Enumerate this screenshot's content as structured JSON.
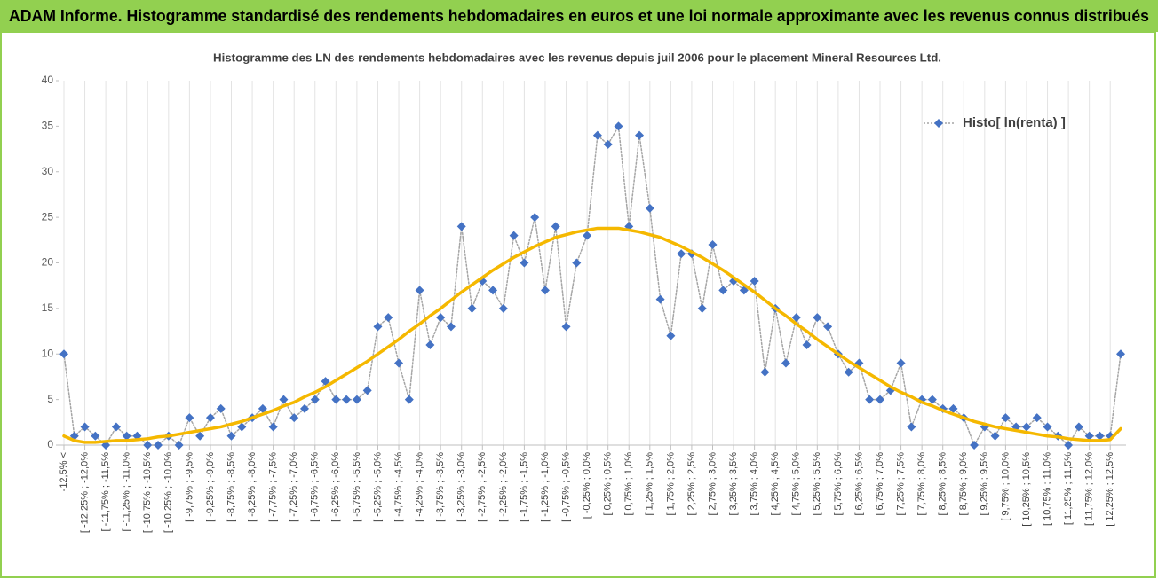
{
  "header": {
    "title": "ADAM Informe. Histogramme standardisé des rendements hebdomadaires en euros et une loi normale approximante avec les revenus connus distribués"
  },
  "chart_data": {
    "type": "line",
    "title": "Histogramme des LN des rendements hebdomadaires avec les revenus depuis juil 2006 pour le placement Mineral Resources Ltd.",
    "categories": [
      "-12,5% <",
      null,
      "[ -12,25% ; -12,0%",
      null,
      "[ -11,75% ; -11,5%",
      null,
      "[ -11,25% ; -11,0%",
      null,
      "[ -10,75% ; -10,5%",
      null,
      "[ -10,25% ; -10,0%",
      null,
      "[ -9,75% ; -9,5%",
      null,
      "[ -9,25% ; -9,0%",
      null,
      "[ -8,75% ; -8,5%",
      null,
      "[ -8,25% ; -8,0%",
      null,
      "[ -7,75% ; -7,5%",
      null,
      "[ -7,25% ; -7,0%",
      null,
      "[ -6,75% ; -6,5%",
      null,
      "[ -6,25% ; -6,0%",
      null,
      "[ -5,75% ; -5,5%",
      null,
      "[ -5,25% ; -5,0%",
      null,
      "[ -4,75% ; -4,5%",
      null,
      "[ -4,25% ; -4,0%",
      null,
      "[ -3,75% ; -3,5%",
      null,
      "[ -3,25% ; -3,0%",
      null,
      "[ -2,75% ; -2,5%",
      null,
      "[ -2,25% ; -2,0%",
      null,
      "[ -1,75% ; -1,5%",
      null,
      "[ -1,25% ; -1,0%",
      null,
      "[ -0,75% ; -0,5%",
      null,
      "[ -0,25% ; 0,0%",
      null,
      "[ 0,25% ; 0,5%",
      null,
      "[ 0,75% ; 1,0%",
      null,
      "[ 1,25% ; 1,5%",
      null,
      "[ 1,75% ; 2,0%",
      null,
      "[ 2,25% ; 2,5%",
      null,
      "[ 2,75% ; 3,0%",
      null,
      "[ 3,25% ; 3,5%",
      null,
      "[ 3,75% ; 4,0%",
      null,
      "[ 4,25% ; 4,5%",
      null,
      "[ 4,75% ; 5,0%",
      null,
      "[ 5,25% ; 5,5%",
      null,
      "[ 5,75% ; 6,0%",
      null,
      "[ 6,25% ; 6,5%",
      null,
      "[ 6,75% ; 7,0%",
      null,
      "[ 7,25% ; 7,5%",
      null,
      "[ 7,75% ; 8,0%",
      null,
      "[ 8,25% ; 8,5%",
      null,
      "[ 8,75% ; 9,0%",
      null,
      "[ 9,25% ; 9,5%",
      null,
      "[ 9,75% ; 10,0%",
      null,
      "[ 10,25% ; 10,5%",
      null,
      "[ 10,75% ; 11,0%",
      null,
      "[ 11,25% ; 11,5%",
      null,
      "[ 11,75% ; 12,0%",
      null,
      "[ 12,25% ; 12,5%",
      null
    ],
    "series": [
      {
        "name": "Histo[ ln(renta) ]",
        "color": "#4472c4",
        "line_color": "#a5a5a5",
        "line_style": "dotted",
        "marker": "diamond",
        "values": [
          10,
          1,
          2,
          1,
          0,
          2,
          1,
          1,
          0,
          0,
          1,
          0,
          3,
          1,
          3,
          4,
          1,
          2,
          3,
          4,
          2,
          5,
          3,
          4,
          5,
          7,
          5,
          5,
          5,
          6,
          13,
          14,
          9,
          5,
          17,
          11,
          14,
          13,
          24,
          15,
          18,
          17,
          15,
          23,
          20,
          25,
          17,
          24,
          13,
          20,
          23,
          34,
          33,
          35,
          24,
          34,
          26,
          16,
          12,
          21,
          21,
          15,
          22,
          17,
          18,
          17,
          18,
          8,
          15,
          9,
          14,
          11,
          14,
          13,
          10,
          8,
          9,
          5,
          5,
          6,
          9,
          2,
          5,
          5,
          4,
          4,
          3,
          0,
          2,
          1,
          3,
          2,
          2,
          3,
          2,
          1,
          0,
          2,
          1,
          1,
          1,
          10
        ]
      },
      {
        "color": "#f5b800",
        "line_color": "#f5b800",
        "line_style": "solid",
        "marker": "none",
        "values": [
          1.0,
          0.5,
          0.3,
          0.3,
          0.4,
          0.5,
          0.5,
          0.6,
          0.7,
          0.9,
          1.0,
          1.2,
          1.4,
          1.6,
          1.8,
          2.0,
          2.3,
          2.6,
          3.0,
          3.4,
          3.8,
          4.3,
          4.7,
          5.3,
          5.8,
          6.4,
          7.1,
          7.8,
          8.5,
          9.2,
          10.0,
          10.8,
          11.6,
          12.5,
          13.3,
          14.2,
          15.0,
          15.9,
          16.8,
          17.6,
          18.4,
          19.2,
          19.9,
          20.6,
          21.2,
          21.8,
          22.3,
          22.8,
          23.1,
          23.4,
          23.6,
          23.8,
          23.8,
          23.8,
          23.6,
          23.4,
          23.1,
          22.8,
          22.3,
          21.8,
          21.2,
          20.6,
          19.9,
          19.2,
          18.4,
          17.6,
          16.8,
          15.9,
          15.0,
          14.2,
          13.3,
          12.5,
          11.6,
          10.8,
          10.0,
          9.2,
          8.5,
          7.8,
          7.1,
          6.4,
          5.8,
          5.3,
          4.7,
          4.3,
          3.8,
          3.4,
          3.0,
          2.6,
          2.3,
          2.0,
          1.8,
          1.6,
          1.4,
          1.2,
          1.0,
          0.9,
          0.7,
          0.6,
          0.5,
          0.5,
          0.6,
          1.8
        ]
      }
    ],
    "ylim": [
      0,
      40
    ],
    "yticks": [
      0,
      5,
      10,
      15,
      20,
      25,
      30,
      35,
      40
    ],
    "grid": "x",
    "legend": "top-right"
  }
}
